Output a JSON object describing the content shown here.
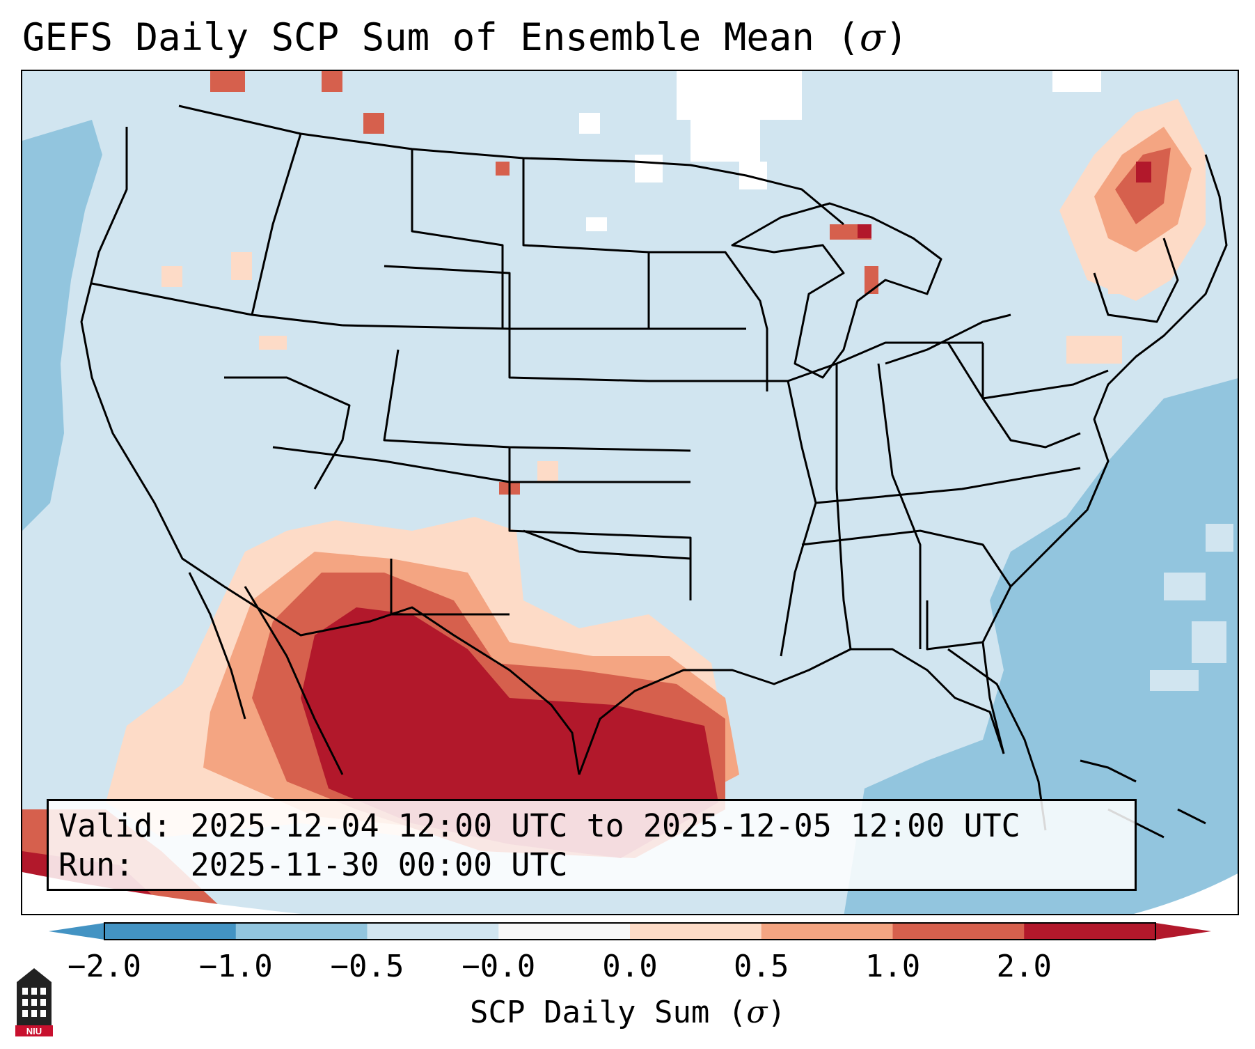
{
  "title": {
    "text": "GEFS Daily SCP Sum of Ensemble Mean (",
    "symbol": "σ",
    "close": ")"
  },
  "info": {
    "valid_label": "Valid:",
    "valid_value": "2025-12-04 12:00 UTC to 2025-12-05 12:00 UTC",
    "run_label": "Run:",
    "run_value": "2025-11-30 00:00 UTC"
  },
  "colorbar": {
    "ticks": [
      "−2.0",
      "−1.0",
      "−0.5",
      "−0.0",
      "0.0",
      "0.5",
      "1.0",
      "2.0"
    ],
    "colors": [
      "#4393c3",
      "#92c5de",
      "#d1e5f0",
      "#f7f7f7",
      "#fddbc7",
      "#f4a582",
      "#d6604d",
      "#b2182b"
    ],
    "label_text": "SCP Daily Sum (",
    "label_symbol": "σ",
    "label_close": ")"
  },
  "map": {
    "anomaly_regions": [
      "Southern Texas and western Gulf of Mexico",
      "Northern Mexico and Southern Arizona / New Mexico",
      "Northern New England",
      "Upper Michigan"
    ],
    "colors": {
      "background": "#d1e5f0",
      "ocean_low": "#92c5de",
      "border": "#000000"
    }
  },
  "logo": {
    "text": "NIU"
  }
}
